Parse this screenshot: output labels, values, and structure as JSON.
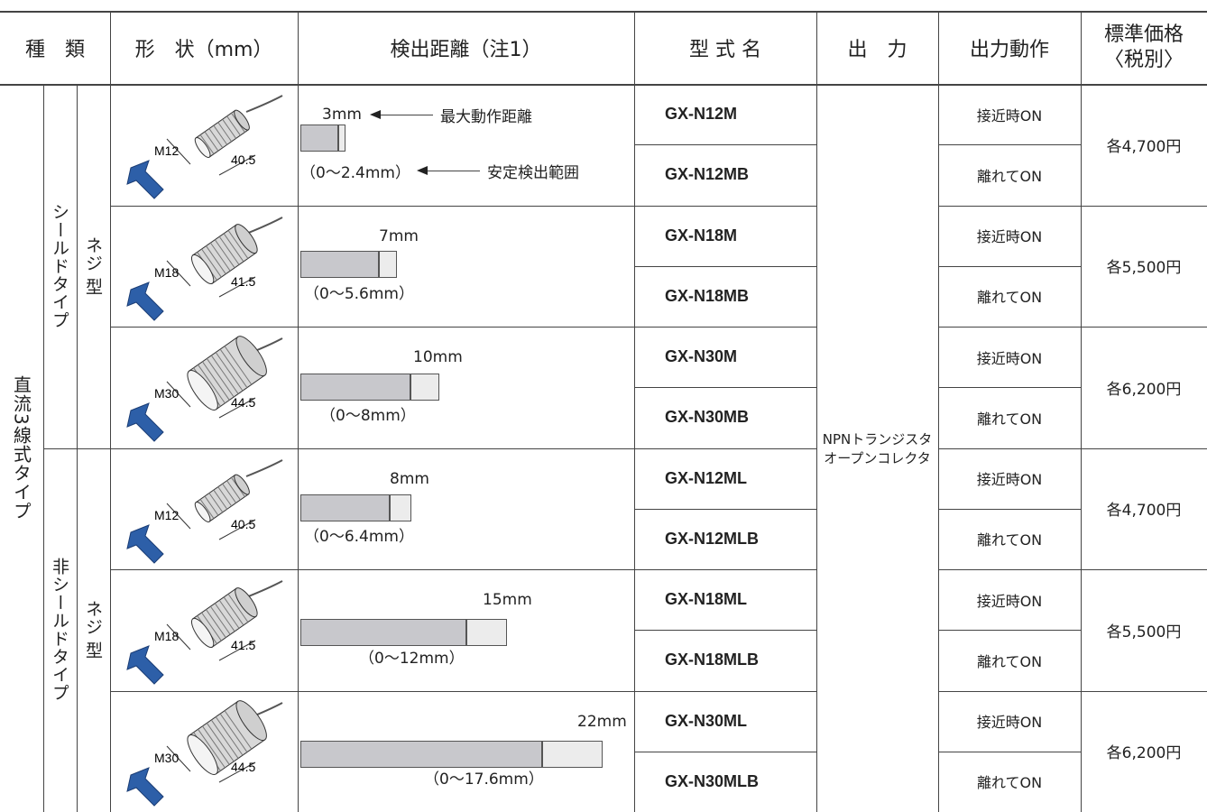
{
  "header": {
    "type": "種　類",
    "shape": "形　状（mm）",
    "distance": "検出距離（注1）",
    "model": "型 式 名",
    "output": "出　力",
    "operation": "出力動作",
    "price": [
      "標準価格",
      "〈税別〉"
    ]
  },
  "type_label": "直流3線式タイプ",
  "subgroups": [
    {
      "shield": "シールドタイプ",
      "mount": [
        "ネジ",
        "型"
      ]
    },
    {
      "shield": "非シールドタイプ",
      "mount": [
        "ネジ",
        "型"
      ]
    }
  ],
  "output": [
    "NPNトランジスタ",
    "オープンコレクタ"
  ],
  "rows": [
    {
      "diameter": "M12",
      "length": "40.5",
      "max_distance": "3mm",
      "max_note": "最大動作距離",
      "stable_range": "（0〜2.4mm）",
      "stable_note": "安定検出範囲",
      "models": [
        "GX-N12M",
        "GX-N12MB"
      ],
      "operations": [
        "接近時ON",
        "離れてON"
      ],
      "price": "各4,700円"
    },
    {
      "diameter": "M18",
      "length": "41.5",
      "max_distance": "7mm",
      "stable_range": "（0〜5.6mm）",
      "models": [
        "GX-N18M",
        "GX-N18MB"
      ],
      "operations": [
        "接近時ON",
        "離れてON"
      ],
      "price": "各5,500円"
    },
    {
      "diameter": "M30",
      "length": "44.5",
      "max_distance": "10mm",
      "stable_range": "（0〜8mm）",
      "models": [
        "GX-N30M",
        "GX-N30MB"
      ],
      "operations": [
        "接近時ON",
        "離れてON"
      ],
      "price": "各6,200円"
    },
    {
      "diameter": "M12",
      "length": "40.5",
      "max_distance": "8mm",
      "stable_range": "（0〜6.4mm）",
      "models": [
        "GX-N12ML",
        "GX-N12MLB"
      ],
      "operations": [
        "接近時ON",
        "離れてON"
      ],
      "price": "各4,700円"
    },
    {
      "diameter": "M18",
      "length": "41.5",
      "max_distance": "15mm",
      "stable_range": "（0〜12mm）",
      "models": [
        "GX-N18ML",
        "GX-N18MLB"
      ],
      "operations": [
        "接近時ON",
        "離れてON"
      ],
      "price": "各5,500円"
    },
    {
      "diameter": "M30",
      "length": "44.5",
      "max_distance": "22mm",
      "stable_range": "（0〜17.6mm）",
      "models": [
        "GX-N30ML",
        "GX-N30MLB"
      ],
      "operations": [
        "接近時ON",
        "離れてON"
      ],
      "price": "各6,200円"
    }
  ]
}
